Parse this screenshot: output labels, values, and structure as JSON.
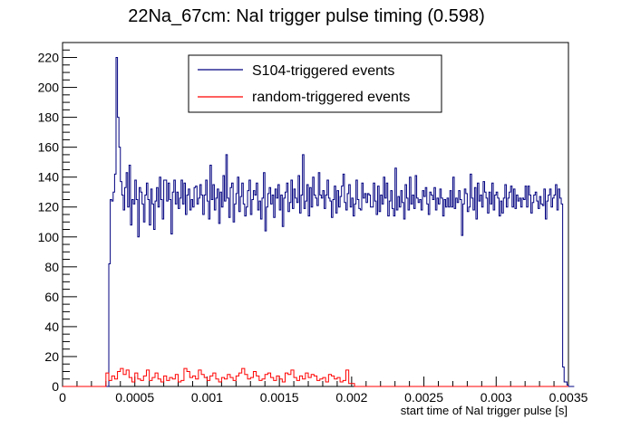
{
  "chart_data": {
    "type": "line",
    "title": "22Na_67cm: NaI trigger pulse timing (0.598)",
    "xlabel": "start time of NaI trigger pulse [s]",
    "ylabel": "",
    "xlim": [
      0,
      0.0035
    ],
    "ylim": [
      0,
      230
    ],
    "x_ticks": [
      0,
      0.0005,
      0.001,
      0.0015,
      0.002,
      0.0025,
      0.003,
      0.0035
    ],
    "x_tick_labels": [
      "0",
      "0.0005",
      "0.001",
      "0.0015",
      "0.002",
      "0.0025",
      "0.003",
      "0.0035"
    ],
    "y_ticks": [
      0,
      20,
      40,
      60,
      80,
      100,
      120,
      140,
      160,
      180,
      200,
      220
    ],
    "y_tick_labels": [
      "0",
      "20",
      "40",
      "60",
      "80",
      "100",
      "120",
      "140",
      "160",
      "180",
      "200",
      "220"
    ],
    "grid": false,
    "legend_position": "top-center",
    "series": [
      {
        "name": "S104-triggered events",
        "color": "#000080",
        "style": "step",
        "bin_width": 1e-05,
        "x_start": 0.0003,
        "values": [
          0,
          0,
          82,
          125,
          124,
          130,
          142,
          220,
          180,
          160,
          137,
          128,
          118,
          133,
          143,
          120,
          148,
          108,
          125,
          122,
          138,
          125,
          100,
          133,
          130,
          122,
          110,
          128,
          136,
          125,
          108,
          132,
          122,
          105,
          124,
          133,
          120,
          140,
          125,
          112,
          138,
          138,
          124,
          136,
          125,
          102,
          130,
          138,
          122,
          130,
          119,
          126,
          138,
          122,
          136,
          115,
          128,
          132,
          118,
          125,
          120,
          133,
          134,
          122,
          126,
          135,
          128,
          115,
          128,
          138,
          124,
          112,
          148,
          125,
          135,
          118,
          126,
          132,
          109,
          130,
          120,
          141,
          124,
          155,
          126,
          113,
          133,
          136,
          110,
          122,
          129,
          140,
          117,
          127,
          136,
          122,
          114,
          120,
          131,
          138,
          115,
          125,
          131,
          128,
          136,
          118,
          124,
          112,
          126,
          143,
          104,
          120,
          129,
          133,
          122,
          128,
          113,
          132,
          126,
          135,
          118,
          128,
          107,
          126,
          130,
          136,
          117,
          123,
          138,
          119,
          132,
          126,
          123,
          141,
          116,
          128,
          155,
          119,
          124,
          135,
          114,
          133,
          120,
          140,
          128,
          126,
          121,
          143,
          128,
          126,
          131,
          119,
          128,
          138,
          126,
          124,
          113,
          125,
          134,
          116,
          131,
          120,
          127,
          134,
          142,
          123,
          118,
          129,
          135,
          120,
          126,
          114,
          122,
          138,
          125,
          119,
          118,
          136,
          126,
          129,
          123,
          129,
          128,
          120,
          120,
          136,
          124,
          115,
          134,
          117,
          128,
          122,
          140,
          126,
          136,
          114,
          124,
          131,
          119,
          114,
          146,
          118,
          127,
          120,
          131,
          123,
          112,
          135,
          126,
          118,
          140,
          122,
          128,
          119,
          141,
          126,
          123,
          125,
          118,
          131,
          127,
          133,
          122,
          115,
          130,
          128,
          125,
          133,
          118,
          126,
          122,
          132,
          126,
          114,
          125,
          120,
          126,
          120,
          131,
          120,
          140,
          119,
          126,
          123,
          131,
          125,
          101,
          122,
          132,
          129,
          117,
          120,
          142,
          126,
          118,
          133,
          112,
          136,
          124,
          128,
          120,
          137,
          130,
          126,
          116,
          130,
          122,
          136,
          118,
          128,
          130,
          126,
          114,
          124,
          116,
          126,
          135,
          120,
          126,
          130,
          134,
          120,
          132,
          119,
          128,
          124,
          126,
          120,
          126,
          125,
          134,
          120,
          134,
          128,
          116,
          123,
          128,
          130,
          124,
          119,
          127,
          122,
          121,
          132,
          112,
          124,
          128,
          132,
          120,
          126,
          128,
          135,
          118,
          132,
          126,
          122,
          13,
          3,
          3,
          1,
          0,
          0,
          0,
          0
        ]
      },
      {
        "name": "random-triggered events",
        "color": "#ff0000",
        "style": "step",
        "bin_width": 2e-05,
        "x_start": 0.0003,
        "values": [
          9,
          4,
          7,
          5,
          10,
          12,
          8,
          11,
          6,
          3,
          9,
          5,
          4,
          7,
          11,
          4,
          6,
          9,
          5,
          3,
          7,
          4,
          6,
          5,
          8,
          3,
          4,
          12,
          10,
          6,
          7,
          5,
          11,
          8,
          6,
          4,
          7,
          9,
          5,
          3,
          6,
          5,
          8,
          6,
          4,
          7,
          9,
          12,
          8,
          5,
          6,
          10,
          7,
          4,
          5,
          8,
          9,
          6,
          4,
          7,
          5,
          3,
          9,
          8,
          11,
          6,
          4,
          7,
          5,
          9,
          6,
          8,
          7,
          4,
          5,
          6,
          3,
          8,
          7,
          5,
          6,
          3,
          4,
          11,
          2,
          2,
          0
        ]
      }
    ]
  }
}
